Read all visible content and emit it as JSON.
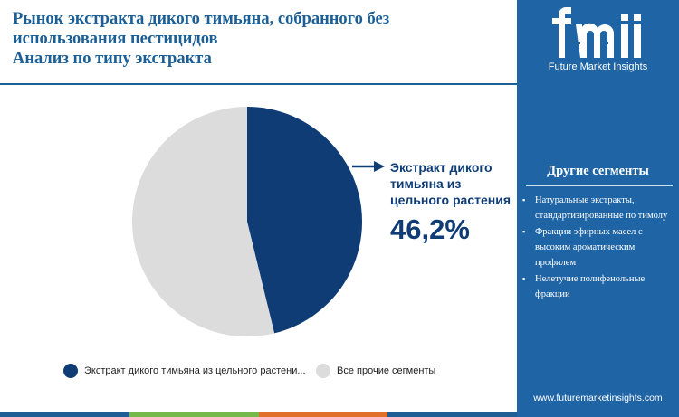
{
  "header": {
    "title_lines": [
      "Рынок экстракта дикого тимьяна, собранного без",
      "использования пестицидов",
      "Анализ по типу экстракта"
    ]
  },
  "colors": {
    "title": "#1b5f96",
    "primary_segment": "#0f3c74",
    "other_segment": "#dcdcdc",
    "sidebar_bg": "#1f65a6",
    "bottom_bar": [
      "#1f5e94",
      "#74b94a",
      "#e0702a",
      "#1f5e94"
    ]
  },
  "chart_data": {
    "type": "pie",
    "slices": [
      {
        "label": "Экстракт дикого тимьяна из цельного растени...",
        "value": 46.2,
        "color": "#0f3c74"
      },
      {
        "label": "Все прочие сегменты",
        "value": 53.8,
        "color": "#dcdcdc"
      }
    ],
    "callout": {
      "label": "Экстракт дикого тимьяна из цельного растения",
      "value_text": "46,2%"
    },
    "legend_position": "bottom"
  },
  "sidebar": {
    "logo_text": "fmi",
    "logo_subtitle": "Future Market Insights",
    "title": "Другие сегменты",
    "items": [
      "Натуральные экстракты, стандартизированные по тимолу",
      "Фракции эфирных масел с высоким ароматическим профилем",
      "Нелетучие полифенольные фракции"
    ],
    "bullet_glyph": "▪",
    "url": "www.futuremarketinsights.com"
  }
}
